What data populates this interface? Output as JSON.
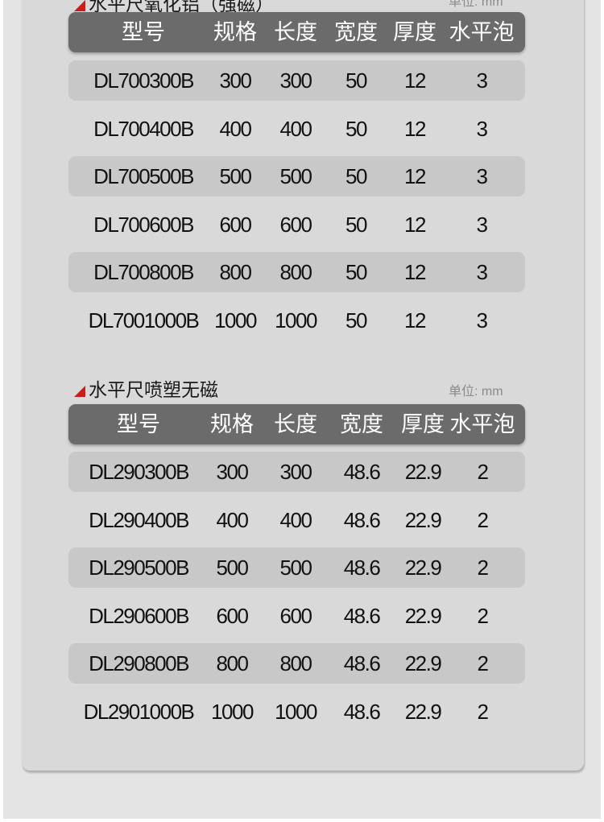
{
  "tables": [
    {
      "title": "水平尺氧化铝（强磁）",
      "unit": "单位: mm",
      "headers": [
        "型号",
        "规格",
        "长度",
        "宽度",
        "厚度",
        "水平泡"
      ],
      "rows": [
        [
          "DL700300B",
          "300",
          "300",
          "50",
          "12",
          "3"
        ],
        [
          "DL700400B",
          "400",
          "400",
          "50",
          "12",
          "3"
        ],
        [
          "DL700500B",
          "500",
          "500",
          "50",
          "12",
          "3"
        ],
        [
          "DL700600B",
          "600",
          "600",
          "50",
          "12",
          "3"
        ],
        [
          "DL700800B",
          "800",
          "800",
          "50",
          "12",
          "3"
        ],
        [
          "DL7001000B",
          "1000",
          "1000",
          "50",
          "12",
          "3"
        ]
      ]
    },
    {
      "title": "水平尺喷塑无磁",
      "unit": "单位: mm",
      "headers": [
        "型号",
        "规格",
        "长度",
        "宽度",
        "厚度",
        "水平泡"
      ],
      "rows": [
        [
          "DL290300B",
          "300",
          "300",
          "48.6",
          "22.9",
          "2"
        ],
        [
          "DL290400B",
          "400",
          "400",
          "48.6",
          "22.9",
          "2"
        ],
        [
          "DL290500B",
          "500",
          "500",
          "48.6",
          "22.9",
          "2"
        ],
        [
          "DL290600B",
          "600",
          "600",
          "48.6",
          "22.9",
          "2"
        ],
        [
          "DL290800B",
          "800",
          "800",
          "48.6",
          "22.9",
          "2"
        ],
        [
          "DL2901000B",
          "1000",
          "1000",
          "48.6",
          "22.9",
          "2"
        ]
      ]
    }
  ],
  "colors": {
    "accent": "#d21a1a",
    "header_bg": "#6b6b6b",
    "row_shade": "#c8c8c8",
    "card_bg": "#d9d9d9"
  }
}
